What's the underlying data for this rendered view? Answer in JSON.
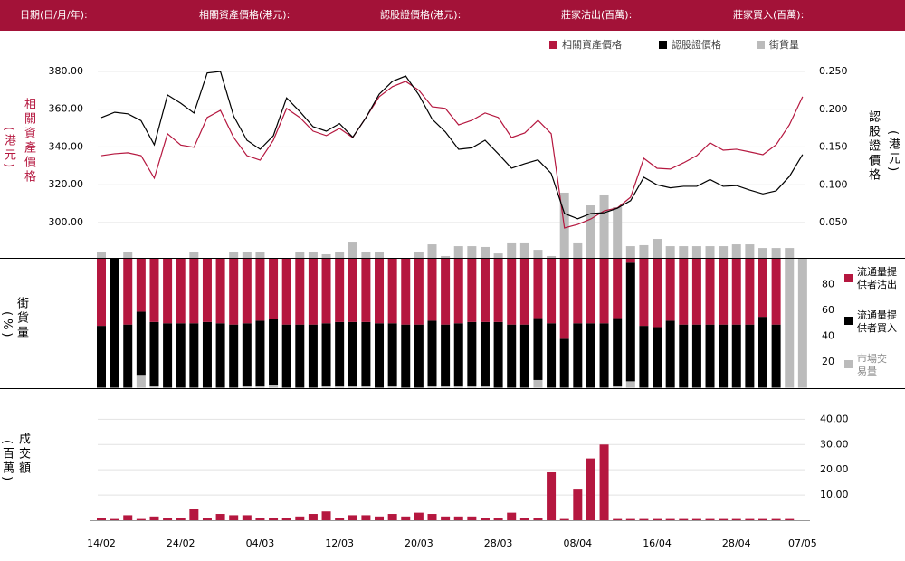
{
  "header": {
    "labels": [
      "日期(日/月/年):",
      "相關資產價格(港元):",
      "認股證價格(港元):",
      "莊家沽出(百萬):",
      "莊家買入(百萬):"
    ]
  },
  "chart_data": [
    {
      "type": "line",
      "y_label": "相關資產價格",
      "y_unit": "(港元)",
      "y2_label": "認股證價格",
      "y2_unit": "(港元)",
      "ylim": [
        281.3,
        388.1
      ],
      "yticks": [
        {
          "value": 300,
          "label": "300.00"
        },
        {
          "value": 320,
          "label": "320.00"
        },
        {
          "value": 340,
          "label": "340.00"
        },
        {
          "value": 360,
          "label": "360.00"
        },
        {
          "value": 380,
          "label": "380.00"
        }
      ],
      "y2lim": [
        0.0033,
        0.2704
      ],
      "y2ticks": [
        {
          "value": 0.05,
          "label": "0.050"
        },
        {
          "value": 0.1,
          "label": "0.100"
        },
        {
          "value": 0.15,
          "label": "0.150"
        },
        {
          "value": 0.2,
          "label": "0.200"
        },
        {
          "value": 0.25,
          "label": "0.250"
        }
      ],
      "y3lim": [
        0,
        100
      ],
      "grid": true,
      "legend": "top-right",
      "series": [
        {
          "name": "相關資產價格",
          "color": "#b5173f",
          "values": [
            335.4,
            336.4,
            336.9,
            335.4,
            323.5,
            347,
            341,
            339.8,
            355.6,
            359.4,
            345,
            335.4,
            333,
            343.6,
            360.4,
            355.6,
            348.4,
            346,
            349.8,
            345,
            355.6,
            366.6,
            371.9,
            374.7,
            370,
            361.3,
            360.4,
            351.7,
            354.1,
            358,
            355.6,
            345,
            347.4,
            354.1,
            347,
            297.1,
            299,
            301.9,
            306.2,
            307.7,
            313.4,
            334,
            328.7,
            328.3,
            331.6,
            335.4,
            342.2,
            338.3,
            338.8,
            337.4,
            335.9,
            341.2,
            351.7,
            366.6
          ]
        },
        {
          "name": "認股證價格",
          "color": "#000000",
          "axis": "y2",
          "values": [
            0.189,
            0.196,
            0.194,
            0.185,
            0.153,
            0.219,
            0.208,
            0.195,
            0.248,
            0.25,
            0.191,
            0.159,
            0.147,
            0.165,
            0.215,
            0.197,
            0.177,
            0.171,
            0.181,
            0.163,
            0.189,
            0.22,
            0.237,
            0.244,
            0.219,
            0.187,
            0.17,
            0.147,
            0.149,
            0.159,
            0.141,
            0.122,
            0.128,
            0.133,
            0.115,
            0.062,
            0.055,
            0.062,
            0.063,
            0.069,
            0.079,
            0.11,
            0.1,
            0.096,
            0.098,
            0.098,
            0.107,
            0.098,
            0.099,
            0.093,
            0.088,
            0.092,
            0.111,
            0.14
          ]
        },
        {
          "name": "街貨量",
          "color": "#bbbbbb",
          "type": "bar",
          "axis": "y3",
          "values": [
            2.7,
            0,
            2.7,
            0,
            0,
            0,
            0,
            2.7,
            0,
            0,
            2.7,
            2.7,
            2.7,
            0,
            0,
            2.7,
            3.1,
            1.8,
            3.1,
            7.6,
            3.1,
            2.7,
            0,
            0,
            2.7,
            6.7,
            0.9,
            5.8,
            5.8,
            5.4,
            2.2,
            7.2,
            7.2,
            4,
            0.9,
            32.3,
            7.2,
            26,
            31.4,
            25.1,
            5.8,
            6.3,
            9.4,
            5.8,
            5.8,
            5.8,
            5.8,
            5.8,
            6.7,
            6.7,
            4.9,
            4.9,
            4.9,
            0
          ]
        }
      ]
    },
    {
      "type": "stacked_bar",
      "y_label": "街貨量",
      "y_unit": "(%)",
      "ylim": [
        0,
        100
      ],
      "yticks": [
        20,
        40,
        60,
        80
      ],
      "series": [
        {
          "name": "市場交易量",
          "color": "#bbbbbb",
          "values": [
            0,
            0,
            0,
            10,
            1,
            0,
            0,
            0,
            0,
            0,
            0,
            1,
            1,
            2,
            0,
            0,
            0,
            1,
            1,
            1,
            1,
            0,
            1,
            0,
            0,
            1,
            1,
            1,
            1,
            1,
            0,
            0,
            0,
            6,
            0,
            0,
            0,
            0,
            0,
            1,
            5,
            0,
            0,
            0,
            0,
            0,
            0,
            0,
            0,
            0,
            0,
            0,
            100,
            100
          ]
        },
        {
          "name": "流通量提供者買入",
          "color": "#000000",
          "values": [
            48,
            100,
            49,
            49,
            50,
            50,
            50,
            50,
            51,
            50,
            49,
            49,
            51,
            51,
            49,
            49,
            49,
            49,
            50,
            50,
            50,
            50,
            49,
            49,
            49,
            51,
            48,
            49,
            50,
            50,
            51,
            49,
            49,
            48,
            50,
            38,
            50,
            50,
            50,
            53,
            92,
            48,
            47,
            52,
            49,
            49,
            49,
            49,
            49,
            49,
            55,
            49,
            0,
            0
          ]
        },
        {
          "name": "流通量提供者沽出",
          "color": "#b5173f",
          "values": [
            52,
            0,
            51,
            41,
            49,
            50,
            50,
            50,
            49,
            50,
            51,
            50,
            48,
            47,
            51,
            51,
            51,
            50,
            49,
            49,
            49,
            50,
            50,
            51,
            51,
            48,
            51,
            50,
            49,
            49,
            49,
            51,
            51,
            46,
            50,
            62,
            50,
            50,
            50,
            46,
            3,
            52,
            53,
            48,
            51,
            51,
            51,
            51,
            51,
            51,
            45,
            51,
            0,
            0
          ]
        }
      ]
    },
    {
      "type": "bar",
      "y_label": "成交額",
      "y_unit": "(百萬)",
      "ylim": [
        0,
        43
      ],
      "grid": true,
      "yticks": [
        {
          "value": 10,
          "label": "10.00"
        },
        {
          "value": 20,
          "label": "20.00"
        },
        {
          "value": 30,
          "label": "30.00"
        },
        {
          "value": 40,
          "label": "40.00"
        }
      ],
      "color": "#b5173f",
      "categories": [
        "14/02",
        null,
        null,
        null,
        null,
        null,
        "24/02",
        null,
        null,
        null,
        null,
        null,
        "04/03",
        null,
        null,
        null,
        null,
        null,
        "12/03",
        null,
        null,
        null,
        null,
        null,
        "20/03",
        null,
        null,
        null,
        null,
        null,
        "28/03",
        null,
        null,
        null,
        null,
        null,
        "08/04",
        null,
        null,
        null,
        null,
        null,
        "16/04",
        null,
        null,
        null,
        null,
        null,
        "28/04",
        null,
        null,
        null,
        null,
        "07/05"
      ],
      "values": [
        1,
        0.5,
        2,
        0.5,
        1.5,
        1,
        1,
        4.5,
        1,
        2.5,
        2,
        2,
        1,
        1,
        1,
        1.5,
        2.5,
        3.5,
        1,
        2,
        2,
        1.5,
        2.5,
        1.5,
        3,
        2.5,
        1.5,
        1.5,
        1.5,
        1,
        1,
        3,
        0.8,
        0.8,
        19,
        0.5,
        12.5,
        24.5,
        30,
        0.5,
        0.5,
        0.5,
        0.5,
        0.5,
        0.5,
        0.5,
        0.5,
        0.5,
        0.5,
        0.5,
        0.5,
        0.5,
        0.5,
        0
      ]
    }
  ]
}
